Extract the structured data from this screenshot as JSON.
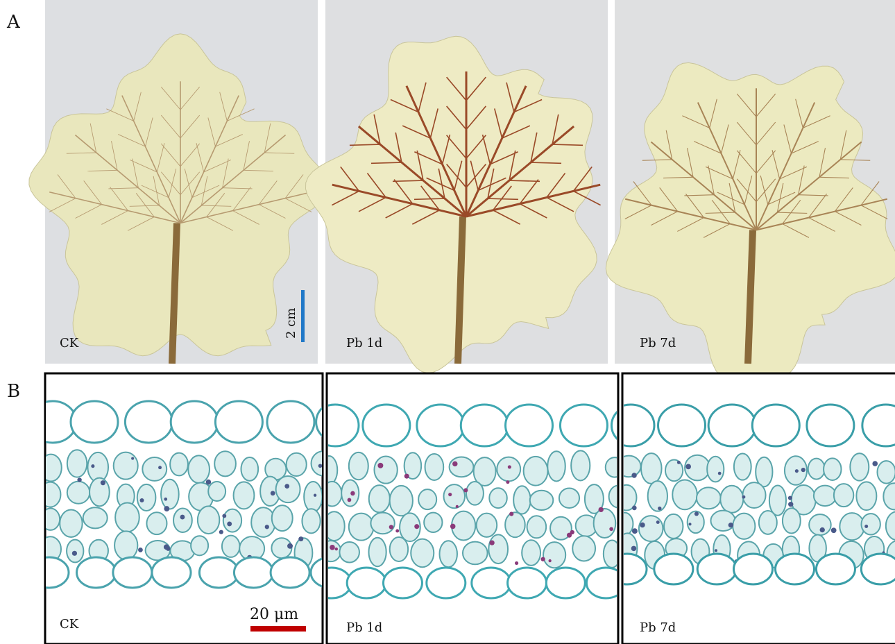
{
  "panels": [
    {
      "label": "A",
      "images": [
        {
          "caption": "CK",
          "scale_bar": "2 cm"
        },
        {
          "caption": "Pb 1d"
        },
        {
          "caption": "Pb 7d"
        }
      ]
    },
    {
      "label": "B",
      "images": [
        {
          "caption": "CK",
          "scale_bar": "20 μm"
        },
        {
          "caption": "Pb 1d"
        },
        {
          "caption": "Pb 7d"
        }
      ]
    }
  ]
}
